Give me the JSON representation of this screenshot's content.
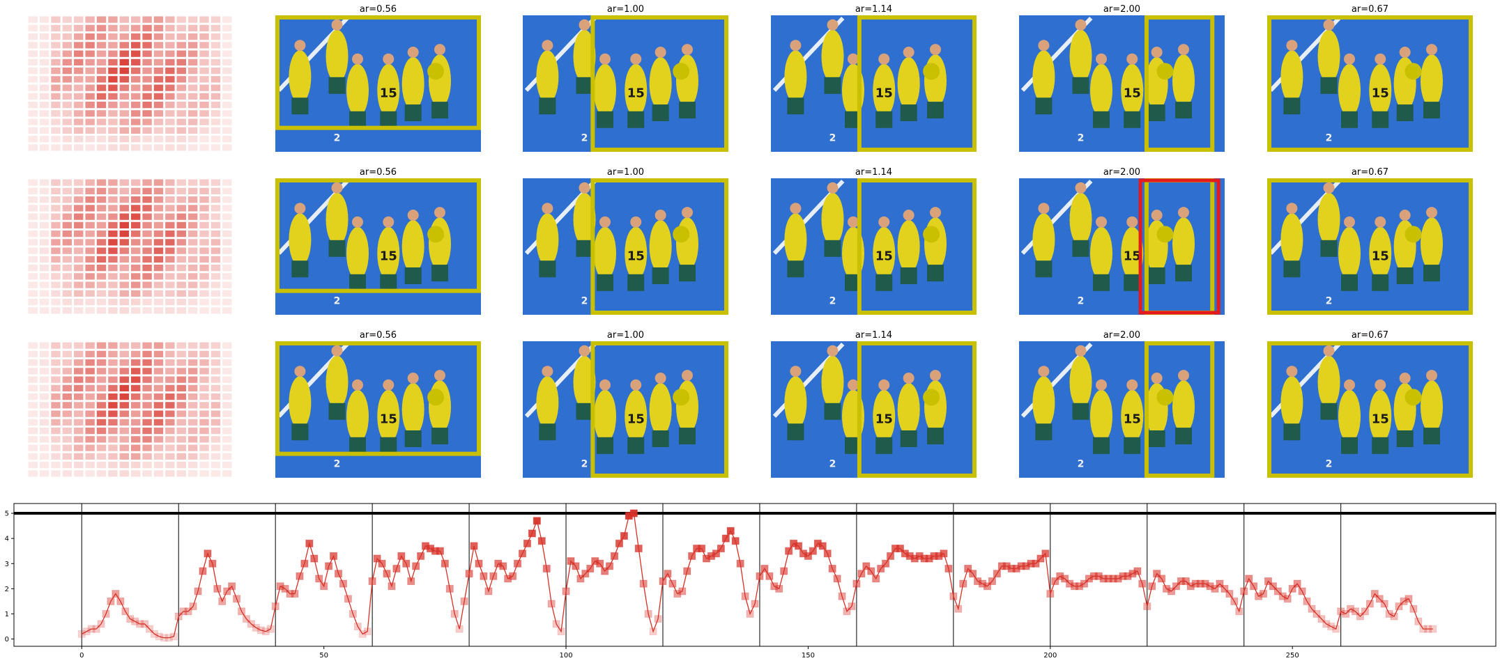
{
  "panels": {
    "rows": 3,
    "titles": [
      "ar=0.56",
      "ar=1.00",
      "ar=1.14",
      "ar=2.00",
      "ar=0.67"
    ],
    "heatmap_color": "#d73027",
    "box_color": "#c8c000",
    "alt_box_color": "#e41a1c",
    "photo_background": "#2f6fd0",
    "jersey_numbers": [
      "15",
      "2"
    ]
  },
  "chart_data": {
    "type": "line",
    "xlim": [
      -14,
      292
    ],
    "ylim": [
      -0.15,
      5.25
    ],
    "x_ticks": [
      0,
      50,
      100,
      150,
      200,
      250
    ],
    "y_ticks": [
      0,
      1,
      2,
      3,
      4,
      5
    ],
    "x_tick_labels": [
      "0",
      "50",
      "100",
      "150",
      "200",
      "250"
    ],
    "y_tick_labels": [
      "0",
      "1",
      "2",
      "3",
      "4",
      "5"
    ],
    "hline": 5,
    "vlines": [
      0,
      20,
      40,
      60,
      80,
      100,
      120,
      140,
      160,
      180,
      200,
      220,
      240,
      260
    ],
    "line_color": "#d73027",
    "series": [
      {
        "values": [
          0.2,
          0.3,
          0.4,
          0.4,
          0.6,
          1.0,
          1.5,
          1.8,
          1.5,
          1.1,
          0.8,
          0.7,
          0.6,
          0.6,
          0.4,
          0.2,
          0.1,
          0.05,
          0.05,
          0.1,
          0.9,
          1.1,
          1.1,
          1.3,
          1.9,
          2.7,
          3.4,
          3.0,
          2.0,
          1.5,
          1.9,
          2.1,
          1.6,
          1.1,
          0.8,
          0.6,
          0.45,
          0.35,
          0.3,
          0.4,
          1.3,
          2.1,
          2.0,
          1.8,
          1.8,
          2.5,
          3.0,
          3.8,
          3.2,
          2.4,
          2.1,
          2.9,
          3.3,
          2.6,
          2.2,
          1.6,
          1.0,
          0.5,
          0.2,
          0.3,
          2.3,
          3.2,
          3.0,
          2.6,
          2.1,
          2.8,
          3.3,
          3.0,
          2.3,
          2.9,
          3.3,
          3.7,
          3.6,
          3.5,
          3.5,
          3.0,
          2.0,
          1.0,
          0.4,
          1.5,
          2.6,
          3.7,
          3.0,
          2.5,
          1.9,
          2.5,
          3.0,
          2.9,
          2.4,
          2.5,
          3.0,
          3.4,
          3.8,
          4.2,
          4.7,
          3.9,
          2.8,
          1.4,
          0.6,
          0.3,
          1.9,
          3.1,
          2.9,
          2.4,
          2.6,
          2.8,
          3.1,
          3.0,
          2.7,
          2.9,
          3.3,
          3.8,
          4.1,
          4.9,
          5.0,
          3.6,
          2.2,
          1.0,
          0.3,
          0.8,
          2.3,
          2.6,
          2.2,
          1.8,
          1.9,
          2.7,
          3.3,
          3.6,
          3.6,
          3.2,
          3.3,
          3.4,
          3.6,
          4.0,
          4.3,
          3.9,
          3.0,
          1.7,
          1.0,
          1.4,
          2.5,
          2.8,
          2.5,
          2.1,
          2.0,
          2.7,
          3.5,
          3.8,
          3.7,
          3.4,
          3.3,
          3.5,
          3.8,
          3.7,
          3.4,
          2.8,
          2.4,
          1.7,
          1.1,
          1.3,
          2.2,
          2.6,
          2.9,
          2.7,
          2.4,
          2.8,
          3.0,
          3.3,
          3.6,
          3.6,
          3.4,
          3.3,
          3.2,
          3.3,
          3.2,
          3.2,
          3.3,
          3.3,
          3.4,
          2.8,
          1.7,
          1.2,
          2.2,
          2.8,
          2.6,
          2.3,
          2.2,
          2.1,
          2.3,
          2.6,
          2.9,
          2.9,
          2.8,
          2.8,
          2.9,
          2.9,
          3.0,
          3.0,
          3.2,
          3.4,
          1.8,
          2.3,
          2.5,
          2.4,
          2.2,
          2.1,
          2.1,
          2.2,
          2.4,
          2.5,
          2.5,
          2.4,
          2.4,
          2.4,
          2.4,
          2.5,
          2.5,
          2.6,
          2.7,
          2.2,
          1.3,
          2.1,
          2.6,
          2.4,
          2.0,
          1.9,
          2.1,
          2.3,
          2.3,
          2.1,
          2.2,
          2.2,
          2.2,
          2.1,
          2.0,
          2.2,
          2.0,
          1.8,
          1.5,
          1.1,
          1.9,
          2.4,
          2.1,
          1.7,
          1.8,
          2.3,
          2.1,
          1.9,
          1.7,
          1.6,
          2.0,
          2.2,
          1.9,
          1.5,
          1.2,
          1.0,
          0.8,
          0.6,
          0.5,
          0.4,
          1.1,
          1.0,
          1.2,
          1.1,
          0.9,
          1.1,
          1.4,
          1.8,
          1.6,
          1.4,
          1.0,
          0.9,
          1.3,
          1.5,
          1.6,
          1.2,
          0.7,
          0.4,
          0.4,
          0.4
        ]
      }
    ]
  }
}
